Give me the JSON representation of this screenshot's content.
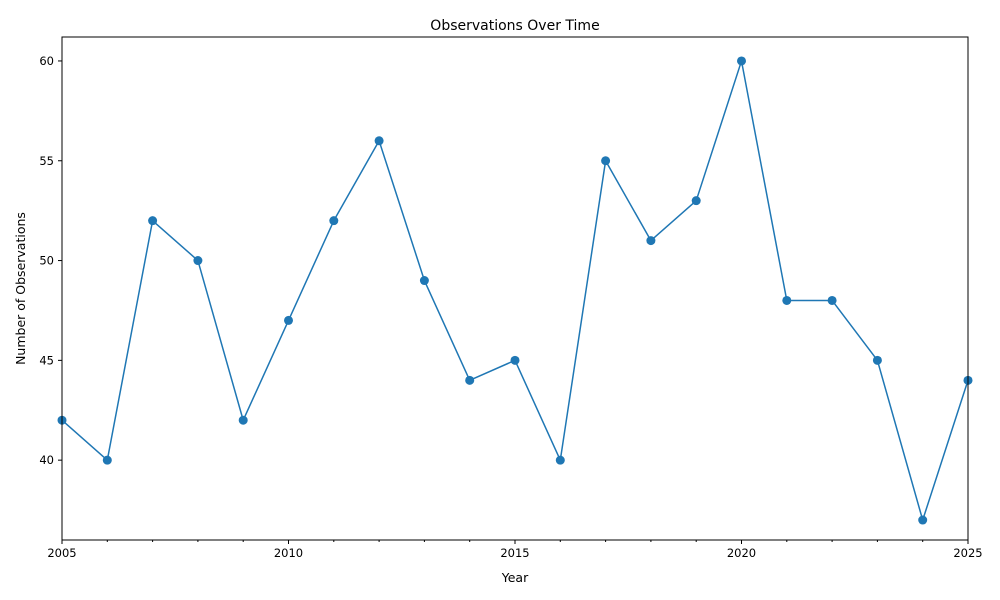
{
  "chart_data": {
    "type": "line",
    "title": "Observations Over Time",
    "xlabel": "Year",
    "ylabel": "Number of Observations",
    "xlim": [
      2005,
      2025
    ],
    "ylim": [
      36.0,
      61.2
    ],
    "x_major_ticks": [
      2005,
      2010,
      2015,
      2020,
      2025
    ],
    "y_major_ticks": [
      40,
      45,
      50,
      55,
      60
    ],
    "grid": false,
    "legend": "none",
    "series": [
      {
        "color": "#1f77b4",
        "marker": "circle",
        "points": [
          {
            "x": 2005,
            "y": 42
          },
          {
            "x": 2006,
            "y": 40
          },
          {
            "x": 2007,
            "y": 52
          },
          {
            "x": 2008,
            "y": 50
          },
          {
            "x": 2009,
            "y": 42
          },
          {
            "x": 2010,
            "y": 47
          },
          {
            "x": 2011,
            "y": 52
          },
          {
            "x": 2012,
            "y": 56
          },
          {
            "x": 2013,
            "y": 49
          },
          {
            "x": 2014,
            "y": 44
          },
          {
            "x": 2015,
            "y": 45
          },
          {
            "x": 2016,
            "y": 40
          },
          {
            "x": 2017,
            "y": 55
          },
          {
            "x": 2018,
            "y": 51
          },
          {
            "x": 2019,
            "y": 53
          },
          {
            "x": 2020,
            "y": 60
          },
          {
            "x": 2021,
            "y": 48
          },
          {
            "x": 2022,
            "y": 48
          },
          {
            "x": 2023,
            "y": 45
          },
          {
            "x": 2024,
            "y": 37
          },
          {
            "x": 2025,
            "y": 44
          }
        ]
      }
    ]
  }
}
